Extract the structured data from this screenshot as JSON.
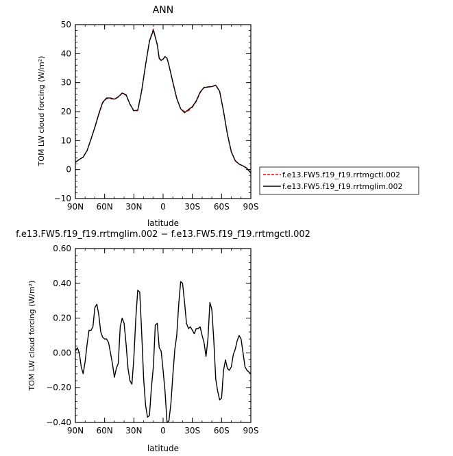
{
  "chart_data": [
    {
      "type": "line",
      "title": "ANN",
      "xlabel": "latitude",
      "ylabel": "TOM LW cloud forcing (W/m²)",
      "xlim": [
        90,
        -90
      ],
      "ylim": [
        -10,
        50
      ],
      "x_ticks": [
        90,
        60,
        30,
        0,
        -30,
        -60,
        -90
      ],
      "x_tick_labels": [
        "90N",
        "60N",
        "30N",
        "0",
        "30S",
        "60S",
        "90S"
      ],
      "y_ticks": [
        -10,
        0,
        10,
        20,
        30,
        40,
        50
      ],
      "y_tick_labels": [
        "−10",
        "0",
        "10",
        "20",
        "30",
        "40",
        "50"
      ],
      "legend": [
        {
          "name": "f.e13.FW5.f19_f19.rrtmgctl.002",
          "color": "#ff0000",
          "dash": "dashed"
        },
        {
          "name": "f.e13.FW5.f19_f19.rrtmglim.002",
          "color": "#000000",
          "dash": "solid"
        }
      ],
      "series": [
        {
          "name": "f.e13.FW5.f19_f19.rrtmgctl.002",
          "color": "#ff0000",
          "dash": "dashed",
          "x": [
            90,
            86,
            82,
            78,
            74,
            70,
            66,
            62,
            58,
            54,
            50,
            46,
            42,
            38,
            34,
            30,
            26,
            22,
            18,
            14,
            10,
            6,
            4,
            2,
            0,
            -2,
            -4,
            -6,
            -10,
            -14,
            -18,
            -22,
            -26,
            -30,
            -34,
            -38,
            -42,
            -46,
            -50,
            -54,
            -58,
            -62,
            -66,
            -70,
            -74,
            -78,
            -82,
            -86,
            -90
          ],
          "values": [
            2.5,
            3.5,
            4.3,
            6.5,
            10.5,
            14.5,
            19,
            23,
            24.5,
            24.5,
            24.2,
            25,
            26.3,
            25.6,
            22.5,
            20.2,
            20.3,
            27,
            36,
            44.5,
            48.5,
            43,
            38.3,
            37.6,
            38,
            39,
            38.4,
            36,
            30,
            24.5,
            21,
            20,
            20.3,
            21.5,
            23.5,
            26.5,
            28.4,
            28.5,
            28.7,
            29.2,
            27,
            20,
            12,
            6,
            3,
            1.8,
            1.3,
            0.5,
            -1.2
          ]
        },
        {
          "name": "f.e13.FW5.f19_f19.rrtmglim.002",
          "color": "#000000",
          "dash": "solid",
          "x": [
            90,
            86,
            82,
            78,
            74,
            70,
            66,
            62,
            58,
            54,
            50,
            46,
            42,
            38,
            34,
            30,
            26,
            22,
            18,
            14,
            10,
            6,
            4,
            2,
            0,
            -2,
            -4,
            -6,
            -10,
            -14,
            -18,
            -22,
            -26,
            -30,
            -34,
            -38,
            -42,
            -46,
            -50,
            -54,
            -58,
            -62,
            -66,
            -70,
            -74,
            -78,
            -82,
            -86,
            -90
          ],
          "values": [
            2.5,
            3.5,
            4.3,
            6.6,
            10.5,
            14.6,
            19.2,
            23.2,
            24.7,
            24.7,
            24.3,
            25.1,
            26.4,
            25.8,
            22.6,
            20.3,
            20.5,
            27.2,
            36.1,
            44.3,
            48.1,
            43.1,
            38.4,
            37.7,
            38.1,
            39,
            38.4,
            36,
            30.2,
            24.6,
            21,
            19.6,
            20.7,
            21.7,
            23.7,
            26.7,
            28.3,
            28.5,
            28.6,
            29.1,
            27,
            20.1,
            12.1,
            6.1,
            3.1,
            1.9,
            1.3,
            0.4,
            -1.2
          ]
        }
      ]
    },
    {
      "type": "line",
      "title": "f.e13.FW5.f19_f19.rrtmglim.002 − f.e13.FW5.f19_f19.rrtmgctl.002",
      "xlabel": "latitude",
      "ylabel": "TOM LW cloud forcing (W/m²)",
      "xlim": [
        90,
        -90
      ],
      "ylim": [
        -0.4,
        0.6
      ],
      "x_ticks": [
        90,
        60,
        30,
        0,
        -30,
        -60,
        -90
      ],
      "x_tick_labels": [
        "90N",
        "60N",
        "30N",
        "0",
        "30S",
        "60S",
        "90S"
      ],
      "y_ticks": [
        -0.4,
        -0.2,
        0,
        0.2,
        0.4,
        0.6
      ],
      "y_tick_labels": [
        "−0.40",
        "−0.20",
        "0.00",
        "0.20",
        "0.40",
        "0.60"
      ],
      "series": [
        {
          "color": "#000000",
          "dash": "solid",
          "x": [
            90,
            88,
            86,
            84,
            82,
            80,
            78,
            76,
            74,
            72,
            70,
            68,
            66,
            64,
            62,
            60,
            58,
            56,
            54,
            52,
            50,
            48,
            46,
            44,
            42,
            40,
            38,
            36,
            34,
            32,
            30,
            28,
            26,
            24,
            22,
            20,
            18,
            16,
            14,
            12,
            10,
            8,
            6,
            4,
            2,
            0,
            -2,
            -4,
            -6,
            -8,
            -10,
            -12,
            -14,
            -16,
            -18,
            -20,
            -22,
            -24,
            -26,
            -28,
            -30,
            -32,
            -34,
            -36,
            -38,
            -40,
            -42,
            -44,
            -46,
            -48,
            -50,
            -52,
            -54,
            -56,
            -58,
            -60,
            -62,
            -64,
            -66,
            -68,
            -70,
            -72,
            -74,
            -76,
            -78,
            -80,
            -82,
            -84,
            -86,
            -88,
            -90
          ],
          "values": [
            0.01,
            0.03,
            0.0,
            -0.08,
            -0.12,
            -0.05,
            0.05,
            0.13,
            0.13,
            0.15,
            0.26,
            0.28,
            0.22,
            0.12,
            0.09,
            0.08,
            0.08,
            0.06,
            0.0,
            -0.06,
            -0.14,
            -0.09,
            -0.06,
            0.15,
            0.2,
            0.17,
            0.05,
            -0.09,
            -0.16,
            -0.18,
            -0.03,
            0.2,
            0.36,
            0.35,
            0.12,
            -0.15,
            -0.3,
            -0.37,
            -0.36,
            -0.2,
            -0.08,
            0.16,
            0.17,
            0.03,
            0.01,
            -0.1,
            -0.22,
            -0.4,
            -0.39,
            -0.29,
            -0.13,
            0.02,
            0.1,
            0.28,
            0.41,
            0.4,
            0.29,
            0.17,
            0.14,
            0.15,
            0.13,
            0.11,
            0.14,
            0.14,
            0.15,
            0.1,
            0.06,
            -0.02,
            0.08,
            0.29,
            0.25,
            0.07,
            -0.15,
            -0.22,
            -0.27,
            -0.26,
            -0.1,
            -0.04,
            -0.09,
            -0.1,
            -0.08,
            -0.01,
            0.02,
            0.07,
            0.1,
            0.08,
            0.0,
            -0.08,
            -0.1,
            -0.11,
            -0.12
          ]
        }
      ]
    }
  ]
}
